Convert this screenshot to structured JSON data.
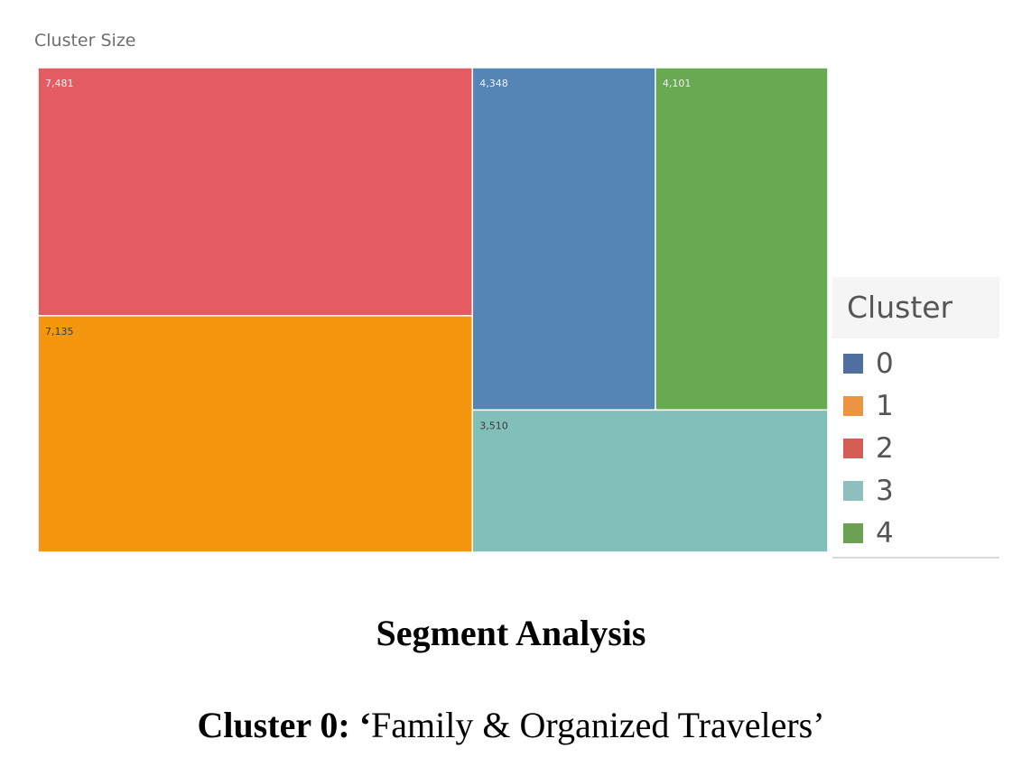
{
  "chart_data": {
    "type": "treemap",
    "title": "Cluster Size",
    "nodes": [
      {
        "cluster": "2",
        "value": 7481,
        "label": "7,481",
        "color": "#e45c63"
      },
      {
        "cluster": "1",
        "value": 7135,
        "label": "7,135",
        "color": "#f5960f"
      },
      {
        "cluster": "0",
        "value": 4348,
        "label": "4,348",
        "color": "#5585b5"
      },
      {
        "cluster": "4",
        "value": 4101,
        "label": "4,101",
        "color": "#68aa51"
      },
      {
        "cluster": "3",
        "value": 3510,
        "label": "3,510",
        "color": "#83bfb9"
      }
    ],
    "legend": {
      "title": "Cluster",
      "placement": "right",
      "items": [
        {
          "label": "0",
          "color": "#4f6f9f"
        },
        {
          "label": "1",
          "color": "#ea9444"
        },
        {
          "label": "2",
          "color": "#d65c57"
        },
        {
          "label": "3",
          "color": "#8ebfbd"
        },
        {
          "label": "4",
          "color": "#6aa152"
        }
      ]
    }
  },
  "page": {
    "segment_heading": "Segment Analysis",
    "cluster_heading_bold": "Cluster 0: ",
    "cluster_heading_quote_open": "‘",
    "cluster_heading_text": "Family & Organized Travelers’"
  }
}
